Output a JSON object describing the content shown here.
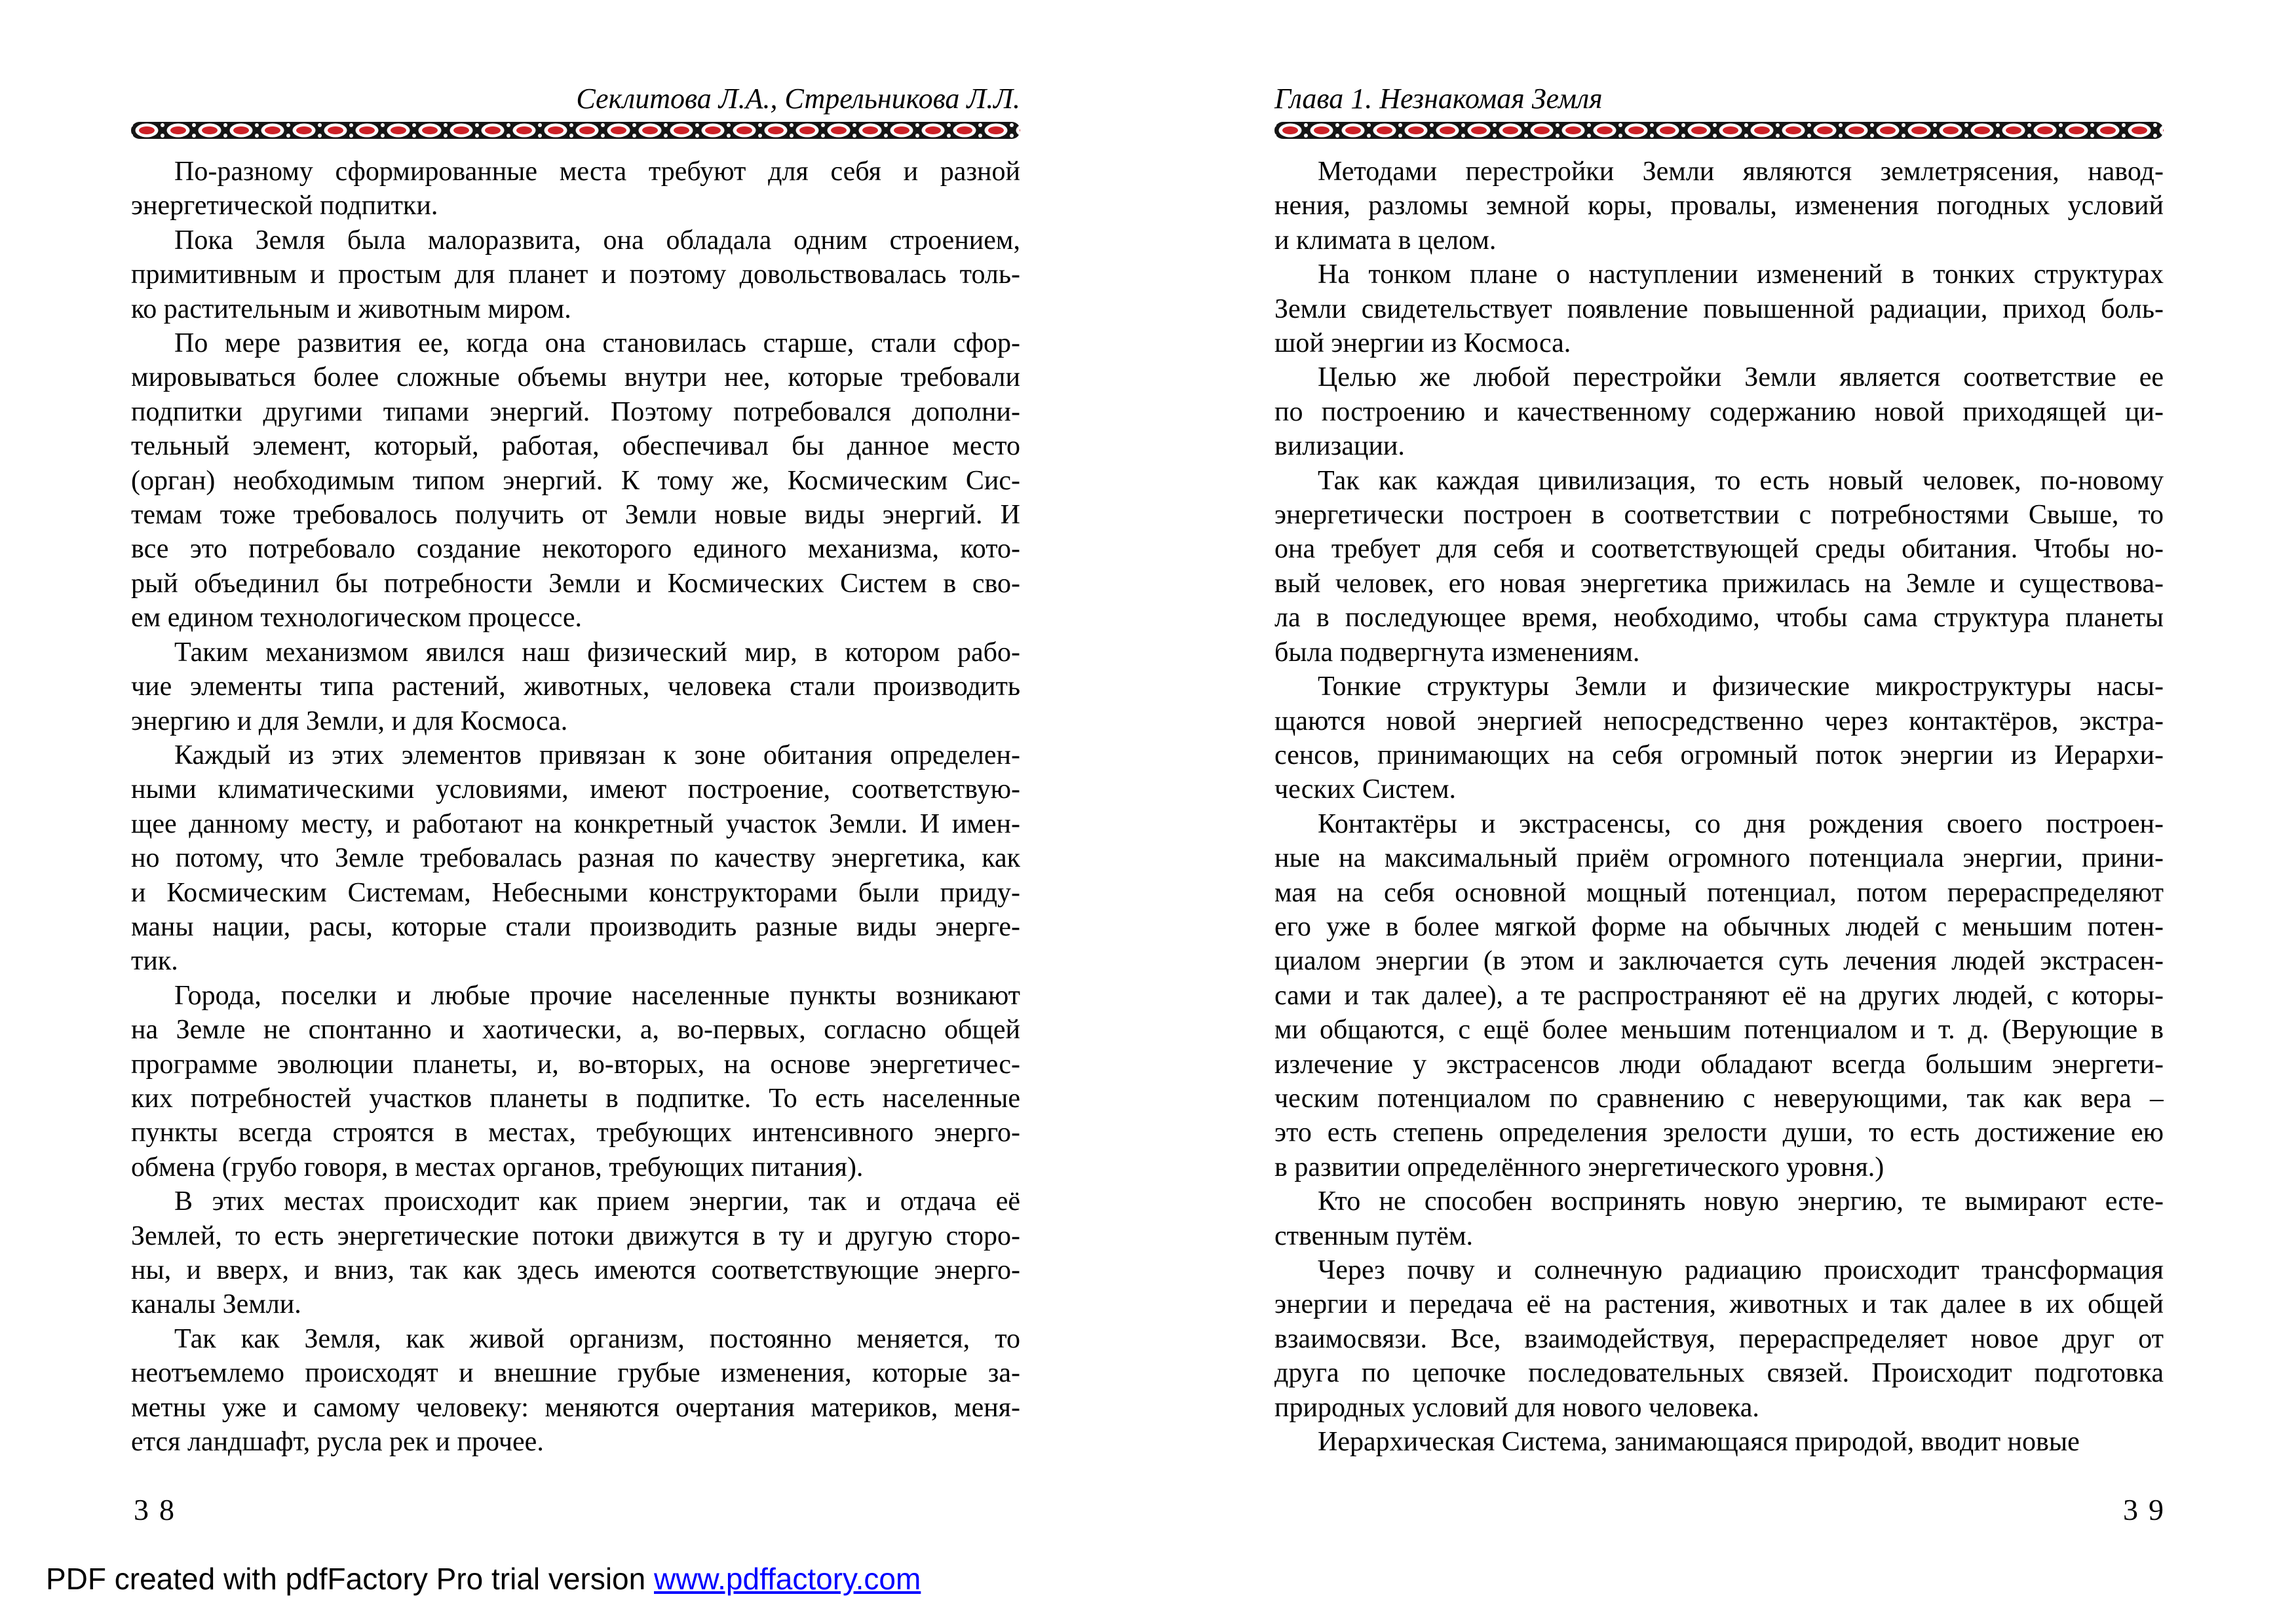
{
  "page": {
    "background": "#ffffff",
    "text_color": "#000000",
    "ornament_black": "#151515",
    "ornament_red": "#cc2127",
    "link_blue": "#0000ff"
  },
  "left_page": {
    "header": "Секлитова Л.А., Стрельникова Л.Л.",
    "page_number": "38",
    "paragraphs": [
      [
        "По-разному сформированные места требуют для себя и разной",
        "энергетической подпитки."
      ],
      [
        "Пока Земля была малоразвита, она обладала одним строением,",
        "примитивным и простым для планет и поэтому довольствовалась толь-",
        "ко растительным и животным миром."
      ],
      [
        "По мере развития ее, когда она становилась старше, стали сфор-",
        "мировываться более сложные объемы внутри нее, которые требовали",
        "подпитки другими типами энергий. Поэтому потребовался дополни-",
        "тельный элемент, который, работая, обеспечивал бы данное место",
        "(орган) необходимым типом энергий. К тому же, Космическим Сис-",
        "темам тоже требовалось получить от Земли новые виды энергий. И",
        "все это потребовало создание некоторого единого механизма, кото-",
        "рый объединил бы потребности Земли и Космических Систем в сво-",
        "ем едином технологическом процессе."
      ],
      [
        "Таким механизмом явился наш физический мир, в котором рабо-",
        "чие элементы типа растений, животных, человека стали производить",
        "энергию и для Земли, и для Космоса."
      ],
      [
        "Каждый из этих элементов привязан к зоне обитания определен-",
        "ными климатическими условиями, имеют построение, соответствую-",
        "щее данному месту, и работают на конкретный участок Земли. И имен-",
        "но потому, что Земле требовалась разная по качеству энергетика, как",
        "и Космическим Системам, Небесными конструкторами были приду-",
        "маны нации, расы, которые стали производить разные виды энерге-",
        "тик."
      ],
      [
        "Города, поселки и любые прочие населенные пункты возникают",
        "на Земле не спонтанно и хаотически, а, во-первых, согласно общей",
        "программе эволюции планеты, и, во-вторых, на основе энергетичес-",
        "ких потребностей участков планеты в подпитке. То есть населенные",
        "пункты всегда строятся в местах, требующих интенсивного энерго-",
        "обмена (грубо говоря, в местах органов, требующих питания)."
      ],
      [
        "В этих местах происходит как прием энергии, так и отдача её",
        "Землей, то есть энергетические потоки движутся в ту и другую сторо-",
        "ны, и вверх, и вниз, так как здесь имеются соответствующие энерго-",
        "каналы Земли."
      ],
      [
        "Так как Земля, как живой организм, постоянно меняется, то",
        "неотъемлемо происходят и внешние грубые изменения, которые за-",
        "метны уже и самому человеку: меняются очертания материков, меня-",
        "ется ландшафт, русла рек и прочее."
      ]
    ]
  },
  "right_page": {
    "header": "Глава 1. Незнакомая Земля",
    "page_number": "39",
    "paragraphs": [
      [
        "Методами перестройки Земли являются землетрясения, навод-",
        "нения, разломы земной коры, провалы, изменения погодных условий",
        "и климата в целом."
      ],
      [
        "На тонком плане о наступлении изменений в тонких структурах",
        "Земли свидетельствует появление повышенной радиации, приход боль-",
        "шой энергии из Космоса."
      ],
      [
        "Целью же любой перестройки Земли является соответствие ее",
        "по построению и качественному содержанию новой приходящей ци-",
        "вилизации."
      ],
      [
        "Так как каждая цивилизация, то есть новый человек, по-новому",
        "энергетически построен в соответствии с потребностями Свыше, то",
        "она требует для себя и соответствующей среды обитания. Чтобы но-",
        "вый человек, его новая энергетика прижилась на Земле и существова-",
        "ла в последующее время, необходимо, чтобы сама структура планеты",
        "была подвергнута изменениям."
      ],
      [
        "Тонкие структуры Земли и физические микроструктуры насы-",
        "щаются новой энергией непосредственно через контактёров, экстра-",
        "сенсов, принимающих на себя огромный поток энергии из Иерархи-",
        "ческих Систем."
      ],
      [
        "Контактёры и экстрасенсы, со дня рождения своего построен-",
        "ные на максимальный приём огромного потенциала энергии, прини-",
        "мая на себя основной мощный потенциал, потом перераспределяют",
        "его уже в более мягкой форме на обычных людей с меньшим потен-",
        "циалом энергии (в этом и заключается суть лечения людей экстрасен-",
        "сами и так далее), а те распространяют её на других людей, с которы-",
        "ми общаются, с ещё более меньшим потенциалом и т. д. (Верующие в",
        "излечение у экстрасенсов люди обладают всегда большим энергети-",
        "ческим потенциалом по сравнению с неверующими, так как вера –",
        "это есть степень определения зрелости души, то есть достижение ею",
        "в развитии определённого энергетического уровня.)"
      ],
      [
        "Кто не способен воспринять новую энергию, те вымирают есте-",
        "ственным путём."
      ],
      [
        "Через почву и солнечную радиацию происходит трансформация",
        "энергии и передача её на растения, животных и так далее в их общей",
        "взаимосвязи. Все, взаимодействуя, перераспределяет новое друг от",
        "друга по цепочке последовательных связей. Происходит подготовка",
        "природных условий для нового человека."
      ],
      [
        "Иерархическая Система, занимающаяся природой, вводит новые"
      ]
    ]
  },
  "footer": {
    "text": "PDF created with pdfFactory Pro trial version ",
    "link": "www.pdffactory.com"
  }
}
